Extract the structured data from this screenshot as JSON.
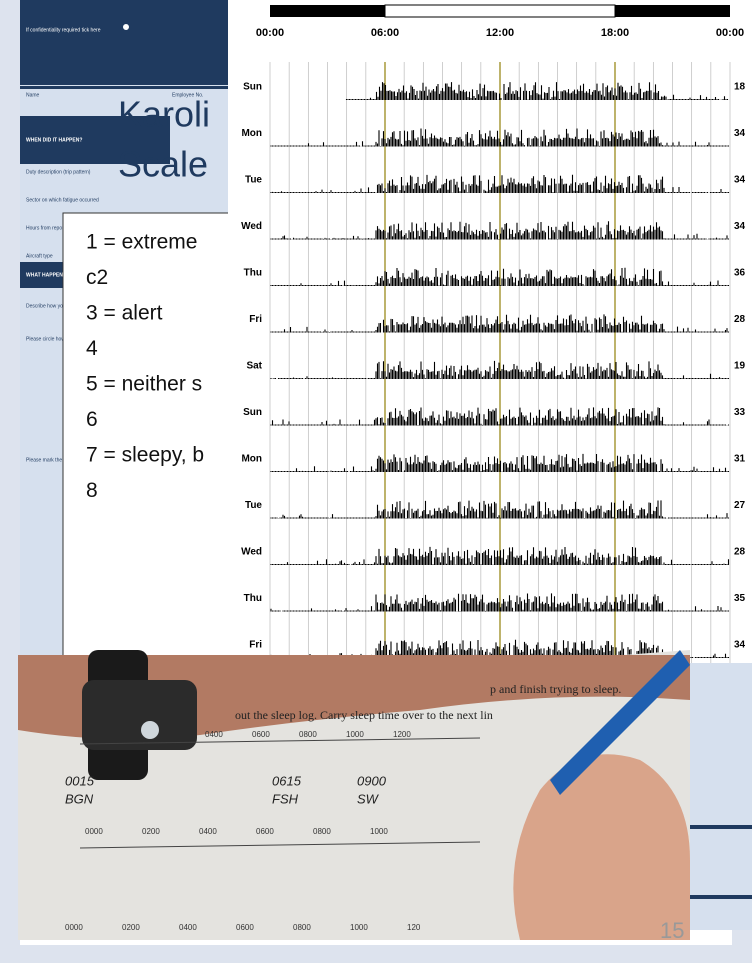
{
  "form": {
    "confidential": "If confidentiality required tick here",
    "name": "Name",
    "employee": "Employee No.",
    "when": "WHEN DID IT HAPPEN?",
    "fields": [
      "Duty description (trip pattern)",
      "Sector on which fatigue occurred",
      "Hours from report",
      "Aircraft type"
    ],
    "what": "WHAT HAPPENED",
    "describe": "Describe how you",
    "circle": "Please circle how",
    "mark": "Please mark the li"
  },
  "kss": {
    "title": [
      "Karoli",
      "Scale"
    ],
    "items": [
      "1 = extreme",
      "c2",
      "3 = alert",
      "4",
      "5 = neither s",
      "6",
      "7 = sleepy, b",
      "8"
    ]
  },
  "actigraph": {
    "time_labels": [
      "00:00",
      "06:00",
      "12:00",
      "18:00",
      "00:00"
    ],
    "days": [
      "Sun",
      "Mon",
      "Tue",
      "Wed",
      "Thu",
      "Fri",
      "Sat",
      "Sun",
      "Mon",
      "Tue",
      "Wed",
      "Thu",
      "Fri"
    ],
    "counts": [
      18,
      34,
      34,
      34,
      36,
      28,
      19,
      33,
      31,
      27,
      28,
      35,
      34
    ]
  },
  "photo": {
    "instructions": [
      "p and finish trying to sleep.",
      "out the sleep log. Carry sleep time over to the next lin"
    ],
    "scale_top": [
      "0400",
      "0600",
      "0800",
      "1000",
      "1200"
    ],
    "marks": [
      {
        "time": "0015",
        "code": "BGN"
      },
      {
        "time": "0615",
        "code": "FSH"
      },
      {
        "time": "0900",
        "code": "SW"
      }
    ],
    "scale_mid": [
      "0000",
      "0200",
      "0400",
      "0600",
      "0800",
      "1000"
    ],
    "scale_bottom": [
      "0000",
      "0200",
      "0400",
      "0600",
      "0800",
      "1000",
      "120"
    ]
  },
  "slide_number": "15"
}
